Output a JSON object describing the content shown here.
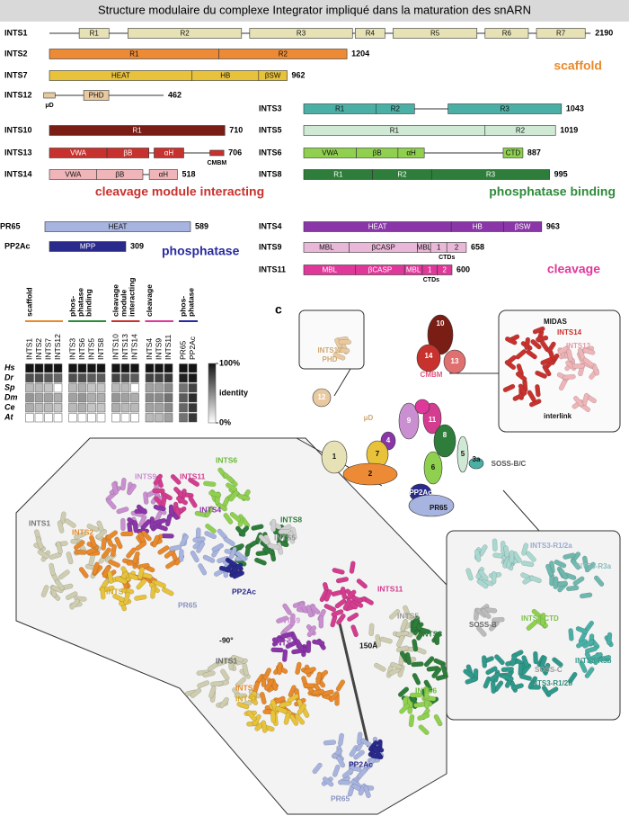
{
  "title": "Structure modulaire du complexe Integrator impliqué dans la maturation des snARN",
  "proteins": [
    {
      "name": "INTS1",
      "length": 2190,
      "color": "#e6e2b5",
      "domains": [
        "R1",
        "R2",
        "R3",
        "R4",
        "R5",
        "R6",
        "R7"
      ]
    },
    {
      "name": "INTS2",
      "length": 1204,
      "color": "#ec8a35",
      "domains": [
        "R1",
        "R2"
      ]
    },
    {
      "name": "INTS7",
      "length": 962,
      "color": "#e8c23a",
      "domains": [
        "HEAT",
        "HB",
        "βSW"
      ]
    },
    {
      "name": "INTS12",
      "length": 462,
      "color": "#e8c9a0",
      "domains": [
        "",
        "PHD"
      ],
      "sublabel": "μD"
    },
    {
      "name": "INTS10",
      "length": 710,
      "color": "#7a1d14",
      "domains": [
        "R1"
      ]
    },
    {
      "name": "INTS13",
      "length": 706,
      "color": "#c8322e",
      "domains": [
        "VWA",
        "βB",
        "αH",
        ""
      ],
      "sublabel": "CMBM"
    },
    {
      "name": "INTS14",
      "length": 518,
      "color": "#efb5b8",
      "domains": [
        "VWA",
        "βB",
        "αH"
      ]
    },
    {
      "name": "INTS3",
      "length": 1043,
      "color": "#4ab0a6",
      "domains": [
        "R1",
        "R2",
        "R3"
      ]
    },
    {
      "name": "INTS5",
      "length": 1019,
      "color": "#cfe9d5",
      "domains": [
        "R1",
        "R2"
      ]
    },
    {
      "name": "INTS6",
      "length": 887,
      "color": "#8fd14f",
      "domains": [
        "VWA",
        "βB",
        "αH",
        "CTD"
      ]
    },
    {
      "name": "INTS8",
      "length": 995,
      "color": "#2e7d3a",
      "domains": [
        "R1",
        "R2",
        "R3"
      ]
    },
    {
      "name": "PR65",
      "length": 589,
      "color": "#a8b4e0",
      "domains": [
        "HEAT"
      ]
    },
    {
      "name": "PP2Ac",
      "length": 309,
      "color": "#2a2a8c",
      "domains": [
        "MPP"
      ]
    },
    {
      "name": "INTS4",
      "length": 963,
      "color": "#8a35a8",
      "domains": [
        "HEAT",
        "HB",
        "βSW"
      ]
    },
    {
      "name": "INTS9",
      "length": 658,
      "color": "#e9b8d8",
      "domains": [
        "MBL",
        "βCASP",
        "MBL",
        "1",
        "2"
      ],
      "sublabel": "CTDs"
    },
    {
      "name": "INTS11",
      "length": 600,
      "color": "#e0389a",
      "domains": [
        "MBL",
        "βCASP",
        "MBL",
        "1",
        "2"
      ],
      "sublabel": "CTDs"
    }
  ],
  "groups": [
    {
      "label": "scaffold",
      "color": "#e8892b"
    },
    {
      "label": "cleavage module interacting",
      "color": "#c8322e"
    },
    {
      "label": "phosphatase binding",
      "color": "#2e8b3a"
    },
    {
      "label": "phosphatase",
      "color": "#2a2aa0"
    },
    {
      "label": "cleavage",
      "color": "#e0389a"
    }
  ],
  "identity_heatmap": {
    "groups": [
      {
        "label": [
          "scaffold"
        ],
        "color": "#e8892b",
        "members": [
          "INTS1",
          "INTS2",
          "INTS7",
          "INTS12"
        ]
      },
      {
        "label": [
          "phos-",
          "phatase",
          "binding"
        ],
        "color": "#2e8b3a",
        "members": [
          "INTS3",
          "INTS6",
          "INTS5",
          "INTS8"
        ]
      },
      {
        "label": [
          "cleavage",
          "module",
          "interacting"
        ],
        "color": "#c8322e",
        "members": [
          "INTS10",
          "INTS13",
          "INTS14"
        ]
      },
      {
        "label": [
          "cleavage"
        ],
        "color": "#e0389a",
        "members": [
          "INTS4",
          "INTS9",
          "INTS11"
        ]
      },
      {
        "label": [
          "phos-",
          "phatase"
        ],
        "color": "#2a2aa0",
        "members": [
          "PR65",
          "PP2Ac"
        ]
      }
    ],
    "species": [
      "Hs",
      "Dr",
      "Sp",
      "Dm",
      "Ce",
      "At"
    ],
    "values": [
      [
        100,
        100,
        100,
        100,
        100,
        100,
        100,
        100,
        100,
        100,
        100,
        100,
        100,
        100,
        100,
        100
      ],
      [
        75,
        75,
        70,
        65,
        75,
        75,
        70,
        70,
        80,
        75,
        70,
        80,
        80,
        85,
        95,
        98
      ],
      [
        30,
        30,
        25,
        0,
        30,
        35,
        25,
        25,
        30,
        30,
        0,
        40,
        40,
        50,
        60,
        80
      ],
      [
        45,
        40,
        40,
        35,
        40,
        45,
        35,
        35,
        45,
        40,
        35,
        50,
        50,
        60,
        70,
        90
      ],
      [
        35,
        30,
        30,
        25,
        30,
        35,
        25,
        25,
        35,
        30,
        30,
        40,
        40,
        50,
        65,
        85
      ],
      [
        0,
        0,
        0,
        0,
        0,
        0,
        0,
        0,
        0,
        0,
        0,
        30,
        30,
        40,
        60,
        85
      ]
    ],
    "colorbar": {
      "label": "identity",
      "range": [
        0,
        100
      ],
      "ticks": [
        {
          "value": 100,
          "label": "100%"
        },
        {
          "value": 0,
          "label": "0%"
        }
      ]
    }
  },
  "panel_c": {
    "label": "c",
    "cartoon_labels": [
      "10",
      "14",
      "13",
      "CMBM",
      "12",
      "μD",
      "9",
      "11",
      "4",
      "1",
      "7",
      "2",
      "6",
      "8",
      "5",
      "3a",
      "SOSS-B/C",
      "PP2Ac",
      "PR65"
    ],
    "inset_left": [
      "INTS12",
      "PHD"
    ],
    "inset_top_right": [
      "MIDAS",
      "INTS14",
      "INTS13",
      "interlink"
    ],
    "inset_bottom_right": [
      "INTS3-R1/2a",
      "INTS3-R3a",
      "SOSS-B",
      "INTS6-CTD",
      "INTS3-R3b",
      "SOSS-C",
      "INTS3-R1/2b"
    ]
  },
  "structure_labels": [
    "INTS9",
    "INTS11",
    "INTS6",
    "INTS1",
    "INTS4",
    "INTS8",
    "INTS2",
    "INTS5",
    "INTS7",
    "PP2Ac",
    "PR65",
    "-90°",
    "INTS11",
    "INTS5",
    "INTS9",
    "INTS8",
    "INTS4",
    "150Å",
    "INTS1",
    "INTS6",
    "INTS2",
    "INTS7",
    "PP2Ac",
    "PR65"
  ]
}
